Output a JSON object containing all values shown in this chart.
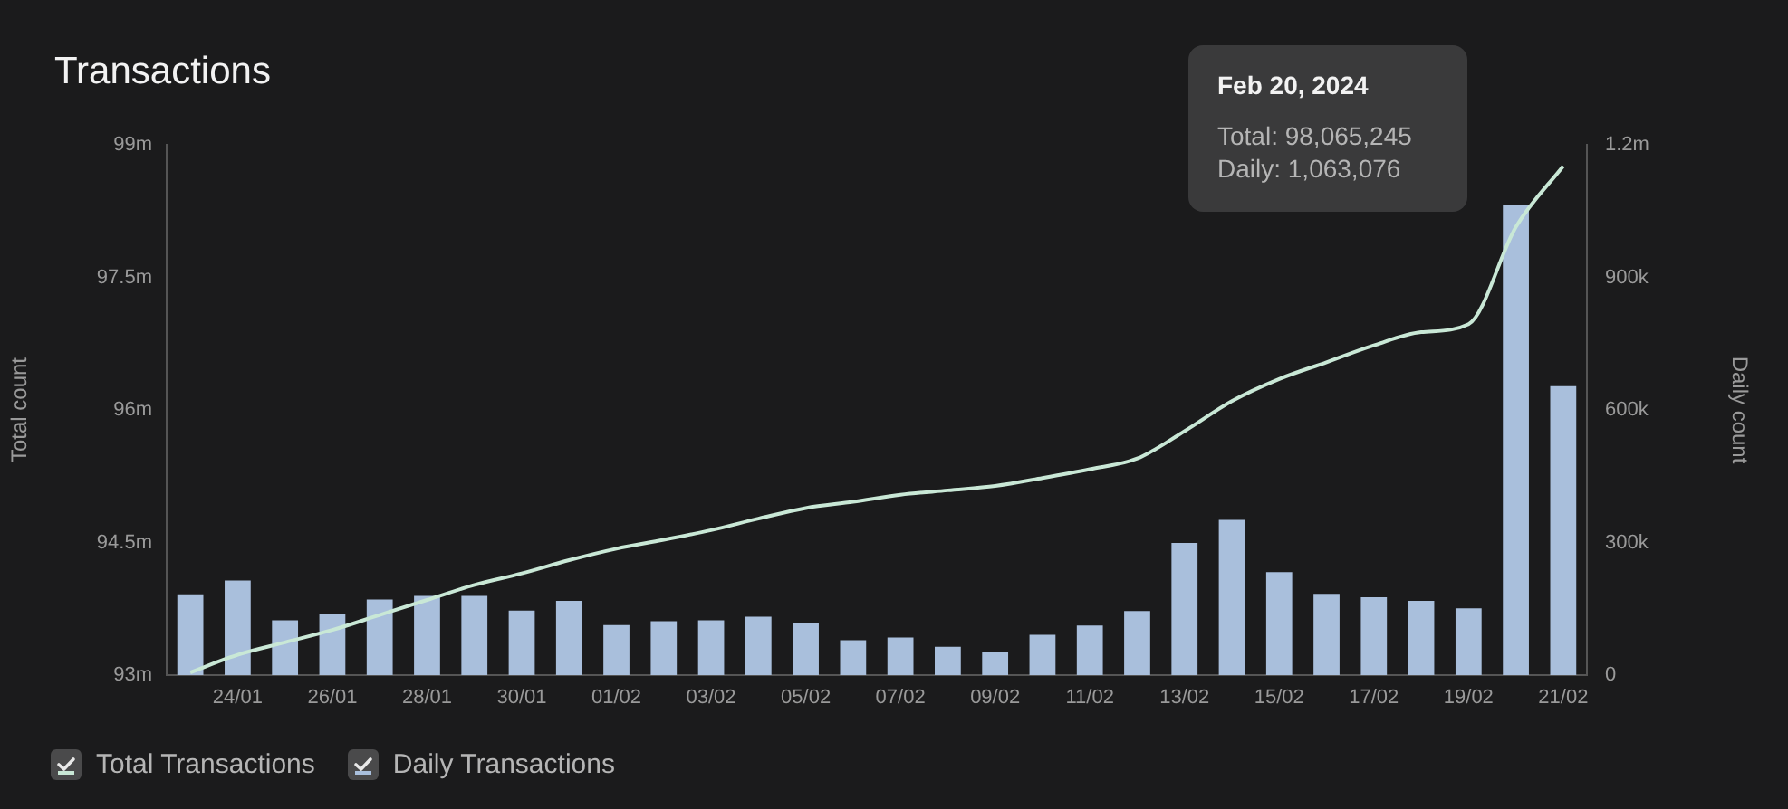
{
  "chart_data": {
    "type": "bar",
    "title": "Transactions",
    "ylabel": "Total count",
    "y2label": "Daily count",
    "categories": [
      null,
      "24/01",
      null,
      "26/01",
      null,
      "28/01",
      null,
      "30/01",
      null,
      "01/02",
      null,
      "03/02",
      null,
      "05/02",
      null,
      "07/02",
      null,
      "09/02",
      null,
      "11/02",
      null,
      "13/02",
      null,
      "15/02",
      null,
      "17/02",
      null,
      "19/02",
      null,
      "21/02"
    ],
    "series": [
      {
        "name": "Total Transactions",
        "type": "line",
        "axis": "y",
        "color": "#c9e8d6",
        "values": [
          93.03,
          93.23,
          93.37,
          93.51,
          93.68,
          93.85,
          94.02,
          94.15,
          94.3,
          94.43,
          94.53,
          94.64,
          94.77,
          94.89,
          94.96,
          95.04,
          95.09,
          95.14,
          95.23,
          95.33,
          95.45,
          95.76,
          96.1,
          96.35,
          96.54,
          96.73,
          96.88,
          96.97,
          98.07,
          98.76
        ]
      },
      {
        "name": "Daily Transactions",
        "axis": "y2",
        "color": "#a9bfdc",
        "values": [
          183000,
          214000,
          124000,
          138000,
          171000,
          179000,
          179000,
          146000,
          168000,
          113000,
          122000,
          124000,
          132000,
          117000,
          79000,
          85000,
          64000,
          53000,
          91000,
          112000,
          145000,
          299000,
          351000,
          233000,
          184000,
          176000,
          168000,
          151000,
          1063076,
          654000
        ]
      }
    ],
    "ylim": [
      93,
      99
    ],
    "yticks": [
      {
        "value": 93,
        "label": "93m"
      },
      {
        "value": 94.5,
        "label": "94.5m"
      },
      {
        "value": 96,
        "label": "96m"
      },
      {
        "value": 97.5,
        "label": "97.5m"
      },
      {
        "value": 99,
        "label": "99m"
      }
    ],
    "y2lim": [
      0,
      1200000
    ],
    "y2ticks": [
      0,
      {
        "value": 300000,
        "label": "300k"
      },
      {
        "value": 600000,
        "label": "600k"
      },
      {
        "value": 900000,
        "label": "900k"
      },
      {
        "value": 1200000,
        "label": "1.2m"
      }
    ],
    "grid": false,
    "legend": "bottom left",
    "marker": "none",
    "line_style": "solid",
    "annotations": [
      "Feb 20, 2024",
      "Total: 98,065,245",
      "Daily: 1,063,076"
    ]
  }
}
